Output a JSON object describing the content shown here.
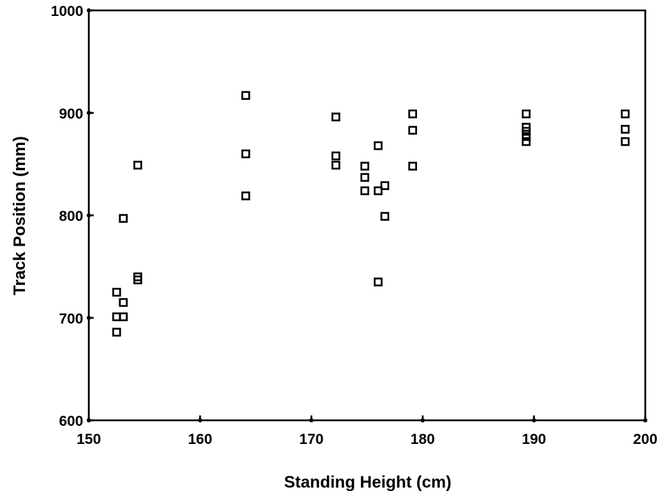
{
  "chart_data": {
    "type": "scatter",
    "title": "",
    "xlabel": "Standing Height (cm)",
    "ylabel": "Track Position (mm)",
    "xlim": [
      150,
      200
    ],
    "ylim": [
      600,
      1000
    ],
    "xticks": [
      150,
      160,
      170,
      180,
      190,
      200
    ],
    "yticks": [
      600,
      700,
      800,
      900,
      1000
    ],
    "xtick_labels": [
      "150",
      "160",
      "170",
      "180",
      "190",
      "200"
    ],
    "ytick_labels": [
      "600",
      "700",
      "800",
      "900",
      "1000"
    ],
    "grid": false,
    "legend": "none",
    "marker": "hollow-square",
    "series": [
      {
        "points": [
          {
            "x": 152.5,
            "y": 725
          },
          {
            "x": 152.5,
            "y": 701
          },
          {
            "x": 152.5,
            "y": 686
          },
          {
            "x": 153.1,
            "y": 797
          },
          {
            "x": 153.1,
            "y": 715
          },
          {
            "x": 153.1,
            "y": 701
          },
          {
            "x": 154.4,
            "y": 849
          },
          {
            "x": 154.4,
            "y": 740
          },
          {
            "x": 154.4,
            "y": 737
          },
          {
            "x": 164.1,
            "y": 917
          },
          {
            "x": 164.1,
            "y": 860
          },
          {
            "x": 164.1,
            "y": 819
          },
          {
            "x": 172.2,
            "y": 896
          },
          {
            "x": 172.2,
            "y": 858
          },
          {
            "x": 172.2,
            "y": 849
          },
          {
            "x": 174.8,
            "y": 848
          },
          {
            "x": 174.8,
            "y": 837
          },
          {
            "x": 174.8,
            "y": 824
          },
          {
            "x": 176.0,
            "y": 868
          },
          {
            "x": 176.0,
            "y": 824
          },
          {
            "x": 176.0,
            "y": 735
          },
          {
            "x": 176.6,
            "y": 829
          },
          {
            "x": 176.6,
            "y": 799
          },
          {
            "x": 179.1,
            "y": 899
          },
          {
            "x": 179.1,
            "y": 883
          },
          {
            "x": 179.1,
            "y": 848
          },
          {
            "x": 189.3,
            "y": 899
          },
          {
            "x": 189.3,
            "y": 886
          },
          {
            "x": 189.3,
            "y": 882
          },
          {
            "x": 189.3,
            "y": 877
          },
          {
            "x": 189.3,
            "y": 872
          },
          {
            "x": 198.2,
            "y": 899
          },
          {
            "x": 198.2,
            "y": 884
          },
          {
            "x": 198.2,
            "y": 872
          }
        ]
      }
    ]
  }
}
